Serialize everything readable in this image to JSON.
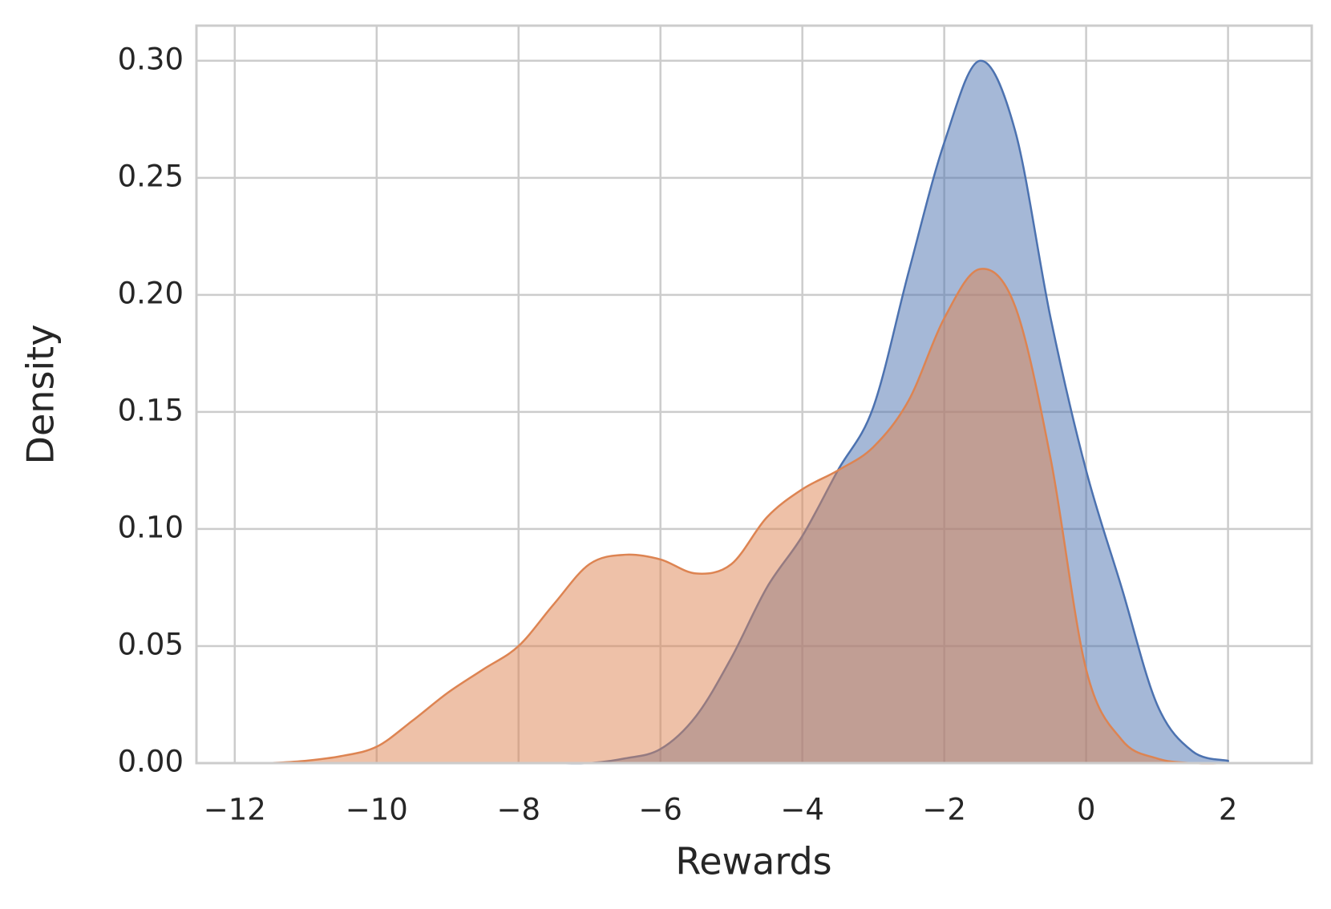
{
  "chart_data": {
    "type": "kde-area",
    "xlabel": "Rewards",
    "ylabel": "Density",
    "x": [
      -11.5,
      -11,
      -10.5,
      -10,
      -9.5,
      -9,
      -8.5,
      -8,
      -7.5,
      -7,
      -6.5,
      -6,
      -5.5,
      -5,
      -4.5,
      -4,
      -3.5,
      -3,
      -2.5,
      -2,
      -1.5,
      -1,
      -0.5,
      0,
      0.5,
      1,
      1.5,
      2
    ],
    "series": [
      {
        "color": "#4c72b0",
        "values": [
          0,
          0,
          0,
          0,
          0,
          0,
          0,
          0,
          0,
          0,
          0.002,
          0.006,
          0.02,
          0.045,
          0.075,
          0.097,
          0.125,
          0.152,
          0.21,
          0.265,
          0.3,
          0.27,
          0.19,
          0.125,
          0.075,
          0.025,
          0.005,
          0.001
        ]
      },
      {
        "color": "#dd8452",
        "values": [
          0,
          0.001,
          0.003,
          0.007,
          0.018,
          0.03,
          0.04,
          0.05,
          0.068,
          0.085,
          0.089,
          0.087,
          0.081,
          0.085,
          0.105,
          0.117,
          0.125,
          0.135,
          0.155,
          0.19,
          0.211,
          0.195,
          0.13,
          0.04,
          0.01,
          0.002,
          0,
          0
        ]
      }
    ],
    "fill_opacity": 0.5,
    "xlim": [
      -12.54,
      3.18
    ],
    "xticks": [
      {
        "value": -12,
        "label": "−12"
      },
      {
        "value": -10,
        "label": "−10"
      },
      {
        "value": -8,
        "label": "−8"
      },
      {
        "value": -6,
        "label": "−6"
      },
      {
        "value": -4,
        "label": "−4"
      },
      {
        "value": -2,
        "label": "−2"
      },
      0,
      2
    ],
    "ylim": [
      0,
      0.315
    ],
    "yticks": [
      {
        "value": 0,
        "label": "0.00"
      },
      {
        "value": 0.05,
        "label": "0.05"
      },
      {
        "value": 0.1,
        "label": "0.10"
      },
      {
        "value": 0.15,
        "label": "0.15"
      },
      {
        "value": 0.2,
        "label": "0.20"
      },
      {
        "value": 0.25,
        "label": "0.25"
      },
      {
        "value": 0.3,
        "label": "0.30"
      }
    ],
    "grid": true
  }
}
